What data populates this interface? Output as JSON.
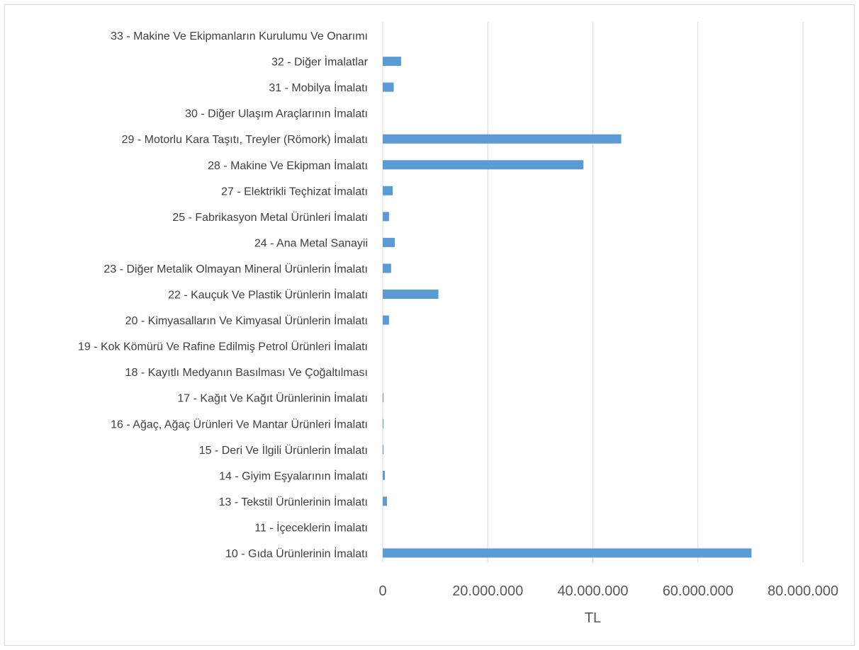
{
  "chart_data": {
    "type": "bar",
    "orientation": "horizontal",
    "title": "",
    "xlabel": "TL",
    "ylabel": "",
    "xlim": [
      0,
      80000000
    ],
    "x_ticks": [
      0,
      20000000,
      40000000,
      60000000,
      80000000
    ],
    "x_tick_labels": [
      "0",
      "20.000.000",
      "40.000.000",
      "60.000.000",
      "80.000.000"
    ],
    "grid": "vertical",
    "legend": "none",
    "bar_color": "#5b9bd5",
    "grid_color": "#d9d9d9",
    "categories": [
      "33 - Makine Ve Ekipmanların Kurulumu Ve Onarımı",
      "32 - Diğer İmalatlar",
      "31 - Mobilya İmalatı",
      "30 - Diğer Ulaşım Araçlarının İmalatı",
      "29 - Motorlu Kara Taşıtı, Treyler (Römork) İmalatı",
      "28 - Makine Ve Ekipman İmalatı",
      "27 - Elektrikli Teçhizat İmalatı",
      "25 - Fabrikasyon Metal Ürünleri İmalatı",
      "24 - Ana Metal Sanayii",
      "23 - Diğer Metalik Olmayan Mineral Ürünlerin İmalatı",
      "22 - Kauçuk Ve Plastik Ürünlerin İmalatı",
      "20 - Kimyasalların Ve Kimyasal Ürünlerin İmalatı",
      "19 - Kok Kömürü Ve Rafine Edilmiş Petrol Ürünleri İmalatı",
      "18 - Kayıtlı Medyanın Basılması Ve Çoğaltılması",
      "17 - Kağıt Ve Kağıt Ürünlerinin İmalatı",
      "16 - Ağaç, Ağaç Ürünleri Ve Mantar Ürünleri İmalatı",
      "15 - Deri Ve İlgili Ürünlerin İmalatı",
      "14 - Giyim Eşyalarının İmalatı",
      "13 - Tekstil Ürünlerinin İmalatı",
      "11 - İçeceklerin İmalatı",
      "10 - Gıda Ürünlerinin İmalatı"
    ],
    "values": [
      0,
      3500000,
      2100000,
      0,
      45400000,
      38200000,
      1900000,
      1200000,
      2300000,
      1600000,
      10600000,
      1200000,
      0,
      0,
      150000,
      150000,
      150000,
      400000,
      800000,
      0,
      70200000
    ]
  }
}
